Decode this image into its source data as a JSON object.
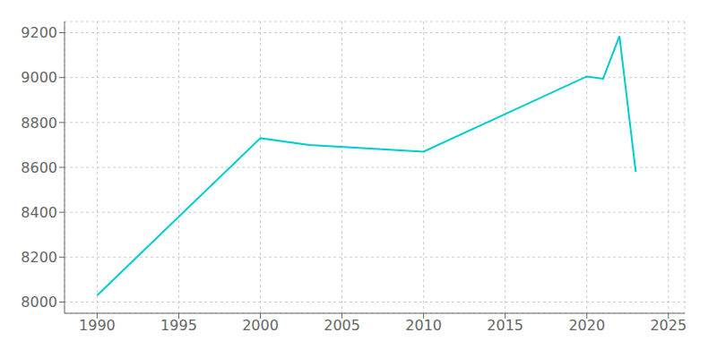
{
  "chart_data": {
    "type": "line",
    "x": [
      1990,
      2000,
      2003,
      2010,
      2020,
      2021,
      2022,
      2023
    ],
    "values": [
      8030,
      8730,
      8700,
      8670,
      9005,
      8995,
      9185,
      8580
    ],
    "color": "#00CDCD",
    "xlim": [
      1988,
      2026
    ],
    "ylim": [
      7950,
      9250
    ],
    "xticks": [
      1990,
      1995,
      2000,
      2005,
      2010,
      2015,
      2020,
      2025
    ],
    "yticks": [
      8000,
      8200,
      8400,
      8600,
      8800,
      9000,
      9200
    ],
    "grid": true
  }
}
